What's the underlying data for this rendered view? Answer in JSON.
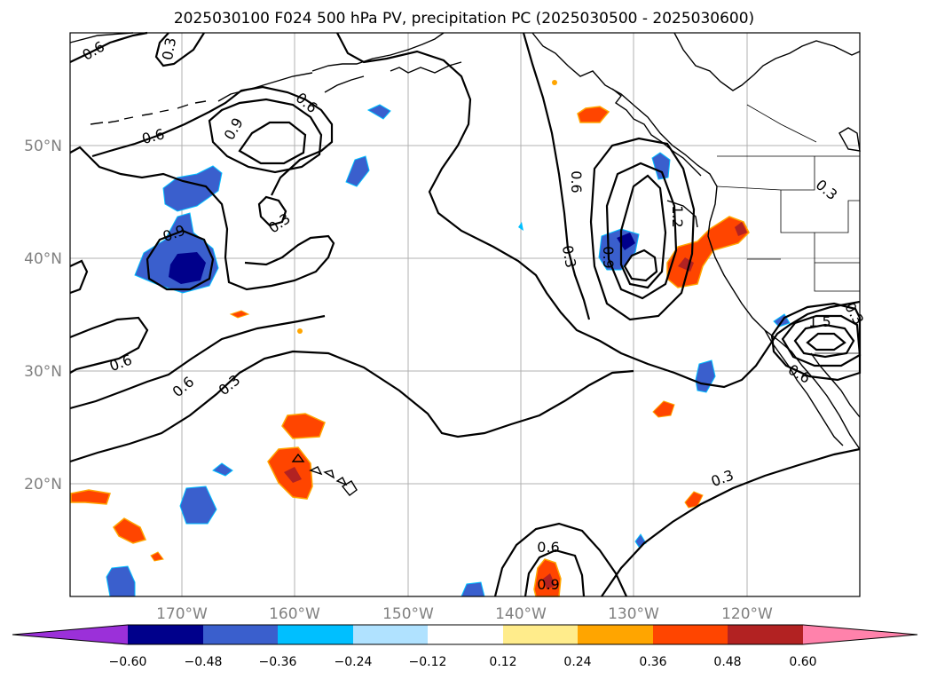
{
  "title": "2025030100 F024 500 hPa PV, precipitation PC (2025030500 - 2025030600)",
  "axes": {
    "lon_ticks": [
      "170°W",
      "160°W",
      "150°W",
      "140°W",
      "130°W",
      "120°W"
    ],
    "lat_ticks": [
      "50°N",
      "40°N",
      "30°N",
      "20°N"
    ],
    "grid": true
  },
  "contour_labels": [
    "0.6",
    "0.3",
    "0.9",
    "1.2",
    "1.5"
  ],
  "colorbar": {
    "ticks": [
      "−0.60",
      "−0.48",
      "−0.36",
      "−0.24",
      "−0.12",
      "0.12",
      "0.24",
      "0.36",
      "0.48",
      "0.60"
    ],
    "colors": [
      "#9b30d9",
      "#00008b",
      "#3a5fcd",
      "#00bfff",
      "#b0e2ff",
      "#ffffff",
      "#ffec8b",
      "#ffa500",
      "#ff4500",
      "#b22222",
      "#ff82ab"
    ],
    "extend": "both"
  }
}
